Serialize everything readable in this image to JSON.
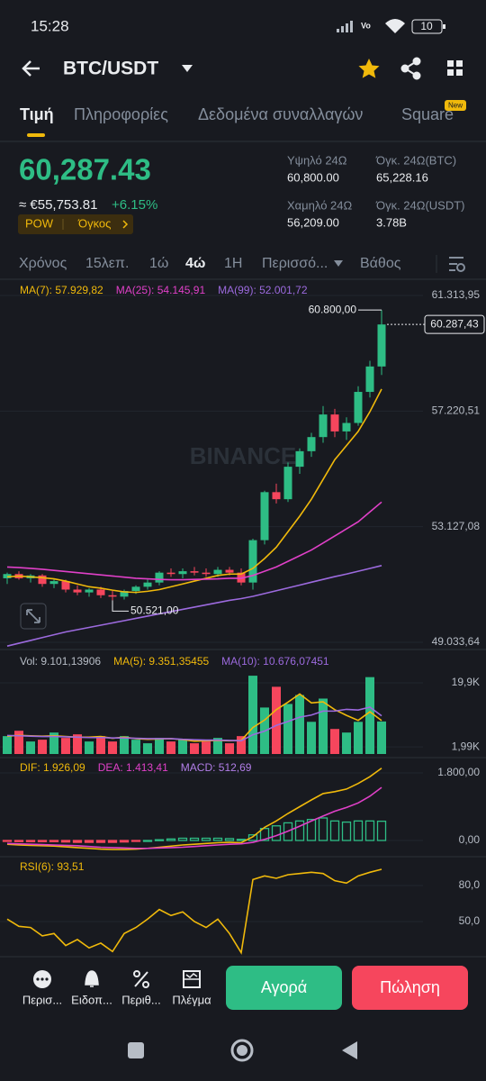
{
  "status_bar": {
    "time": "15:28",
    "battery": "10"
  },
  "header": {
    "pair": "BTC/USDT"
  },
  "tabs": {
    "items": [
      "Τιμή",
      "Πληροφορίες",
      "Δεδομένα συναλλαγών",
      "Square"
    ],
    "badge": "New"
  },
  "price": {
    "last": "60,287.43",
    "fiat": "≈ €55,753.81",
    "change": "+6.15%",
    "tags": [
      "POW",
      "Όγκος"
    ]
  },
  "stats": [
    {
      "label": "Υψηλό 24Ω",
      "value": "60,800.00"
    },
    {
      "label": "Όγκ. 24Ω(BTC)",
      "value": "65,228.16"
    },
    {
      "label": "Χαμηλό 24Ω",
      "value": "56,209.00"
    },
    {
      "label": "Όγκ. 24Ω(USDT)",
      "value": "3.78B"
    }
  ],
  "intervals": [
    "Χρόνος",
    "15λεπ.",
    "1ώ",
    "4ώ",
    "1Η",
    "Περισσό...",
    "Βάθος"
  ],
  "chart_data": [
    {
      "type": "candlestick",
      "watermark": "BINANCE",
      "up_color": "#2ebd85",
      "down_color": "#f6465d",
      "open": [
        51300,
        51450,
        51300,
        51400,
        51100,
        51200,
        50900,
        50800,
        50900,
        50700,
        50650,
        50850,
        51000,
        51150,
        51500,
        51450,
        51550,
        51500,
        51450,
        51600,
        51500,
        51150,
        52650,
        54350,
        54100,
        55250,
        55800,
        56300,
        57100,
        56500,
        56800,
        57900,
        58800
      ],
      "high": [
        51500,
        51550,
        51450,
        51450,
        51300,
        51250,
        51050,
        50950,
        51000,
        50850,
        50900,
        51050,
        51250,
        51550,
        51650,
        51650,
        51700,
        51650,
        51700,
        51700,
        51650,
        52700,
        54400,
        54650,
        55400,
        55900,
        56450,
        57400,
        57300,
        57000,
        58100,
        59000,
        60800
      ],
      "low": [
        51100,
        51250,
        51150,
        51000,
        50950,
        50800,
        50700,
        50650,
        50600,
        50521,
        50550,
        50750,
        50900,
        51050,
        51350,
        51300,
        51400,
        51350,
        51350,
        51400,
        51050,
        50900,
        52500,
        53950,
        54000,
        55000,
        55600,
        56100,
        56300,
        56200,
        56700,
        57700,
        58500
      ],
      "close": [
        51450,
        51300,
        51400,
        51100,
        51200,
        50900,
        50800,
        50900,
        50700,
        50650,
        50850,
        51000,
        51150,
        51500,
        51450,
        51550,
        51500,
        51450,
        51600,
        51500,
        51150,
        52650,
        54350,
        54100,
        55250,
        55800,
        56300,
        57100,
        56500,
        56800,
        57900,
        58800,
        60287.43
      ],
      "series": [
        {
          "name": "MA(7): 57.929,82",
          "color": "#f0b90b",
          "values": [
            51350,
            51380,
            51350,
            51320,
            51280,
            51200,
            51100,
            51000,
            50950,
            50880,
            50820,
            50800,
            50840,
            50900,
            51000,
            51100,
            51200,
            51300,
            51400,
            51450,
            51450,
            51650,
            52000,
            52400,
            52950,
            53500,
            54100,
            54800,
            55500,
            56000,
            56500,
            57200,
            58000
          ]
        },
        {
          "name": "MA(25): 54.145,91",
          "color": "#e040c8",
          "values": [
            51700,
            51680,
            51650,
            51620,
            51580,
            51540,
            51500,
            51460,
            51420,
            51380,
            51340,
            51300,
            51280,
            51260,
            51250,
            51250,
            51260,
            51270,
            51280,
            51300,
            51300,
            51400,
            51550,
            51700,
            51900,
            52100,
            52300,
            52550,
            52800,
            53050,
            53300,
            53650,
            54000
          ]
        },
        {
          "name": "MA(99): 52.001,72",
          "color": "#9c6ade",
          "values": [
            48900,
            49000,
            49100,
            49200,
            49300,
            49400,
            49480,
            49560,
            49640,
            49720,
            49800,
            49880,
            49960,
            50040,
            50120,
            50200,
            50280,
            50360,
            50440,
            50520,
            50580,
            50660,
            50760,
            50860,
            50960,
            51060,
            51160,
            51260,
            51360,
            51450,
            51550,
            51650,
            51750
          ]
        }
      ],
      "ylim": [
        49033.64,
        61313.95
      ],
      "yticks": [
        {
          "value": 61313.95,
          "label": "61.313,95"
        },
        {
          "value": 57220.51,
          "label": "57.220,51"
        },
        {
          "value": 53127.08,
          "label": "53.127,08"
        },
        {
          "value": 49033.64,
          "label": "49.033,64"
        }
      ],
      "annotations": [
        {
          "value": 50521,
          "label": "50.521,00"
        },
        {
          "value": 60800,
          "label": "60.800,00"
        },
        {
          "value": 60287.43,
          "label": "60.287,43"
        }
      ]
    },
    {
      "type": "bar",
      "name": "Vol: 9.101,13906",
      "values": [
        5000,
        6500,
        3500,
        4000,
        6000,
        4500,
        5500,
        3500,
        5000,
        3500,
        5000,
        4000,
        3000,
        4500,
        3500,
        4000,
        3000,
        3500,
        4500,
        3000,
        5000,
        21900,
        13000,
        18800,
        14000,
        16500,
        9000,
        15500,
        7000,
        6000,
        9000,
        21500,
        9101.13906
      ],
      "series": [
        {
          "name": "MA(5): 9.351,35455",
          "color": "#f0b90b",
          "values": [
            5000,
            5200,
            5100,
            5000,
            5100,
            4900,
            4700,
            4700,
            4900,
            4400,
            4700,
            4300,
            4100,
            4200,
            4300,
            4000,
            3600,
            3700,
            3800,
            3700,
            3800,
            7400,
            9500,
            12400,
            14500,
            16800,
            14300,
            14600,
            12400,
            10800,
            9400,
            11800,
            9351.35455
          ]
        },
        {
          "name": "MA(10): 10.676,07451",
          "color": "#9c6ade",
          "values": [
            5200,
            5100,
            5000,
            4900,
            4900,
            4800,
            4700,
            4600,
            4600,
            4500,
            4500,
            4400,
            4300,
            4300,
            4300,
            4100,
            4000,
            3900,
            3900,
            3800,
            3700,
            5400,
            6400,
            8000,
            9100,
            10300,
            10900,
            12000,
            12000,
            12500,
            12300,
            13100,
            10676.07451
          ]
        }
      ],
      "ylim": [
        0,
        28220
      ],
      "yticks": [
        {
          "value": 19900,
          "label": "19,9K"
        },
        {
          "value": 1990,
          "label": "1,99K"
        }
      ]
    },
    {
      "type": "macd",
      "series": [
        {
          "name": "DIF: 1.926,09",
          "color": "#f0b90b",
          "values": [
            -100,
            -120,
            -130,
            -140,
            -150,
            -170,
            -190,
            -210,
            -230,
            -240,
            -240,
            -230,
            -210,
            -180,
            -150,
            -120,
            -100,
            -80,
            -60,
            -50,
            -60,
            100,
            350,
            520,
            720,
            900,
            1080,
            1250,
            1300,
            1370,
            1520,
            1700,
            1926.09
          ]
        },
        {
          "name": "DEA: 1.413,41",
          "color": "#e040c8",
          "values": [
            -80,
            -90,
            -100,
            -110,
            -120,
            -130,
            -140,
            -160,
            -180,
            -190,
            -200,
            -210,
            -210,
            -200,
            -190,
            -180,
            -160,
            -140,
            -120,
            -100,
            -90,
            -50,
            30,
            130,
            250,
            380,
            520,
            650,
            780,
            880,
            1000,
            1180,
            1413.41
          ]
        }
      ],
      "histogram": {
        "name": "MACD: 512,69",
        "color": "#b27ee8",
        "up_color": "#2ebd85",
        "down_color": "#f6465d",
        "values": [
          -20,
          -30,
          -30,
          -30,
          -30,
          -40,
          -50,
          -50,
          -50,
          -50,
          -40,
          -20,
          0,
          20,
          40,
          60,
          60,
          60,
          60,
          50,
          30,
          150,
          320,
          390,
          470,
          520,
          560,
          600,
          520,
          490,
          520,
          520,
          512.69
        ]
      },
      "ylim": [
        -288,
        2112
      ],
      "yticks": [
        {
          "value": 1800,
          "label": "1.800,00"
        },
        {
          "value": 0,
          "label": "0,00"
        }
      ]
    },
    {
      "type": "line",
      "series": [
        {
          "name": "RSI(6): 93,51",
          "color": "#f0b90b",
          "values": [
            52,
            46,
            45,
            38,
            40,
            30,
            35,
            28,
            32,
            25,
            40,
            45,
            52,
            60,
            55,
            58,
            50,
            45,
            52,
            40,
            24,
            85,
            88,
            86,
            89,
            90,
            91,
            90,
            84,
            82,
            88,
            91,
            93.51
          ]
        }
      ],
      "ylim": [
        22.2,
        101
      ],
      "yticks": [
        {
          "value": 80,
          "label": "80,0"
        },
        {
          "value": 50,
          "label": "50,0"
        }
      ]
    }
  ],
  "bottom_bar": {
    "actions": [
      "Περισ...",
      "Ειδοπ...",
      "Περιθ...",
      "Πλέγμα"
    ],
    "buy": "Αγορά",
    "sell": "Πώληση"
  }
}
